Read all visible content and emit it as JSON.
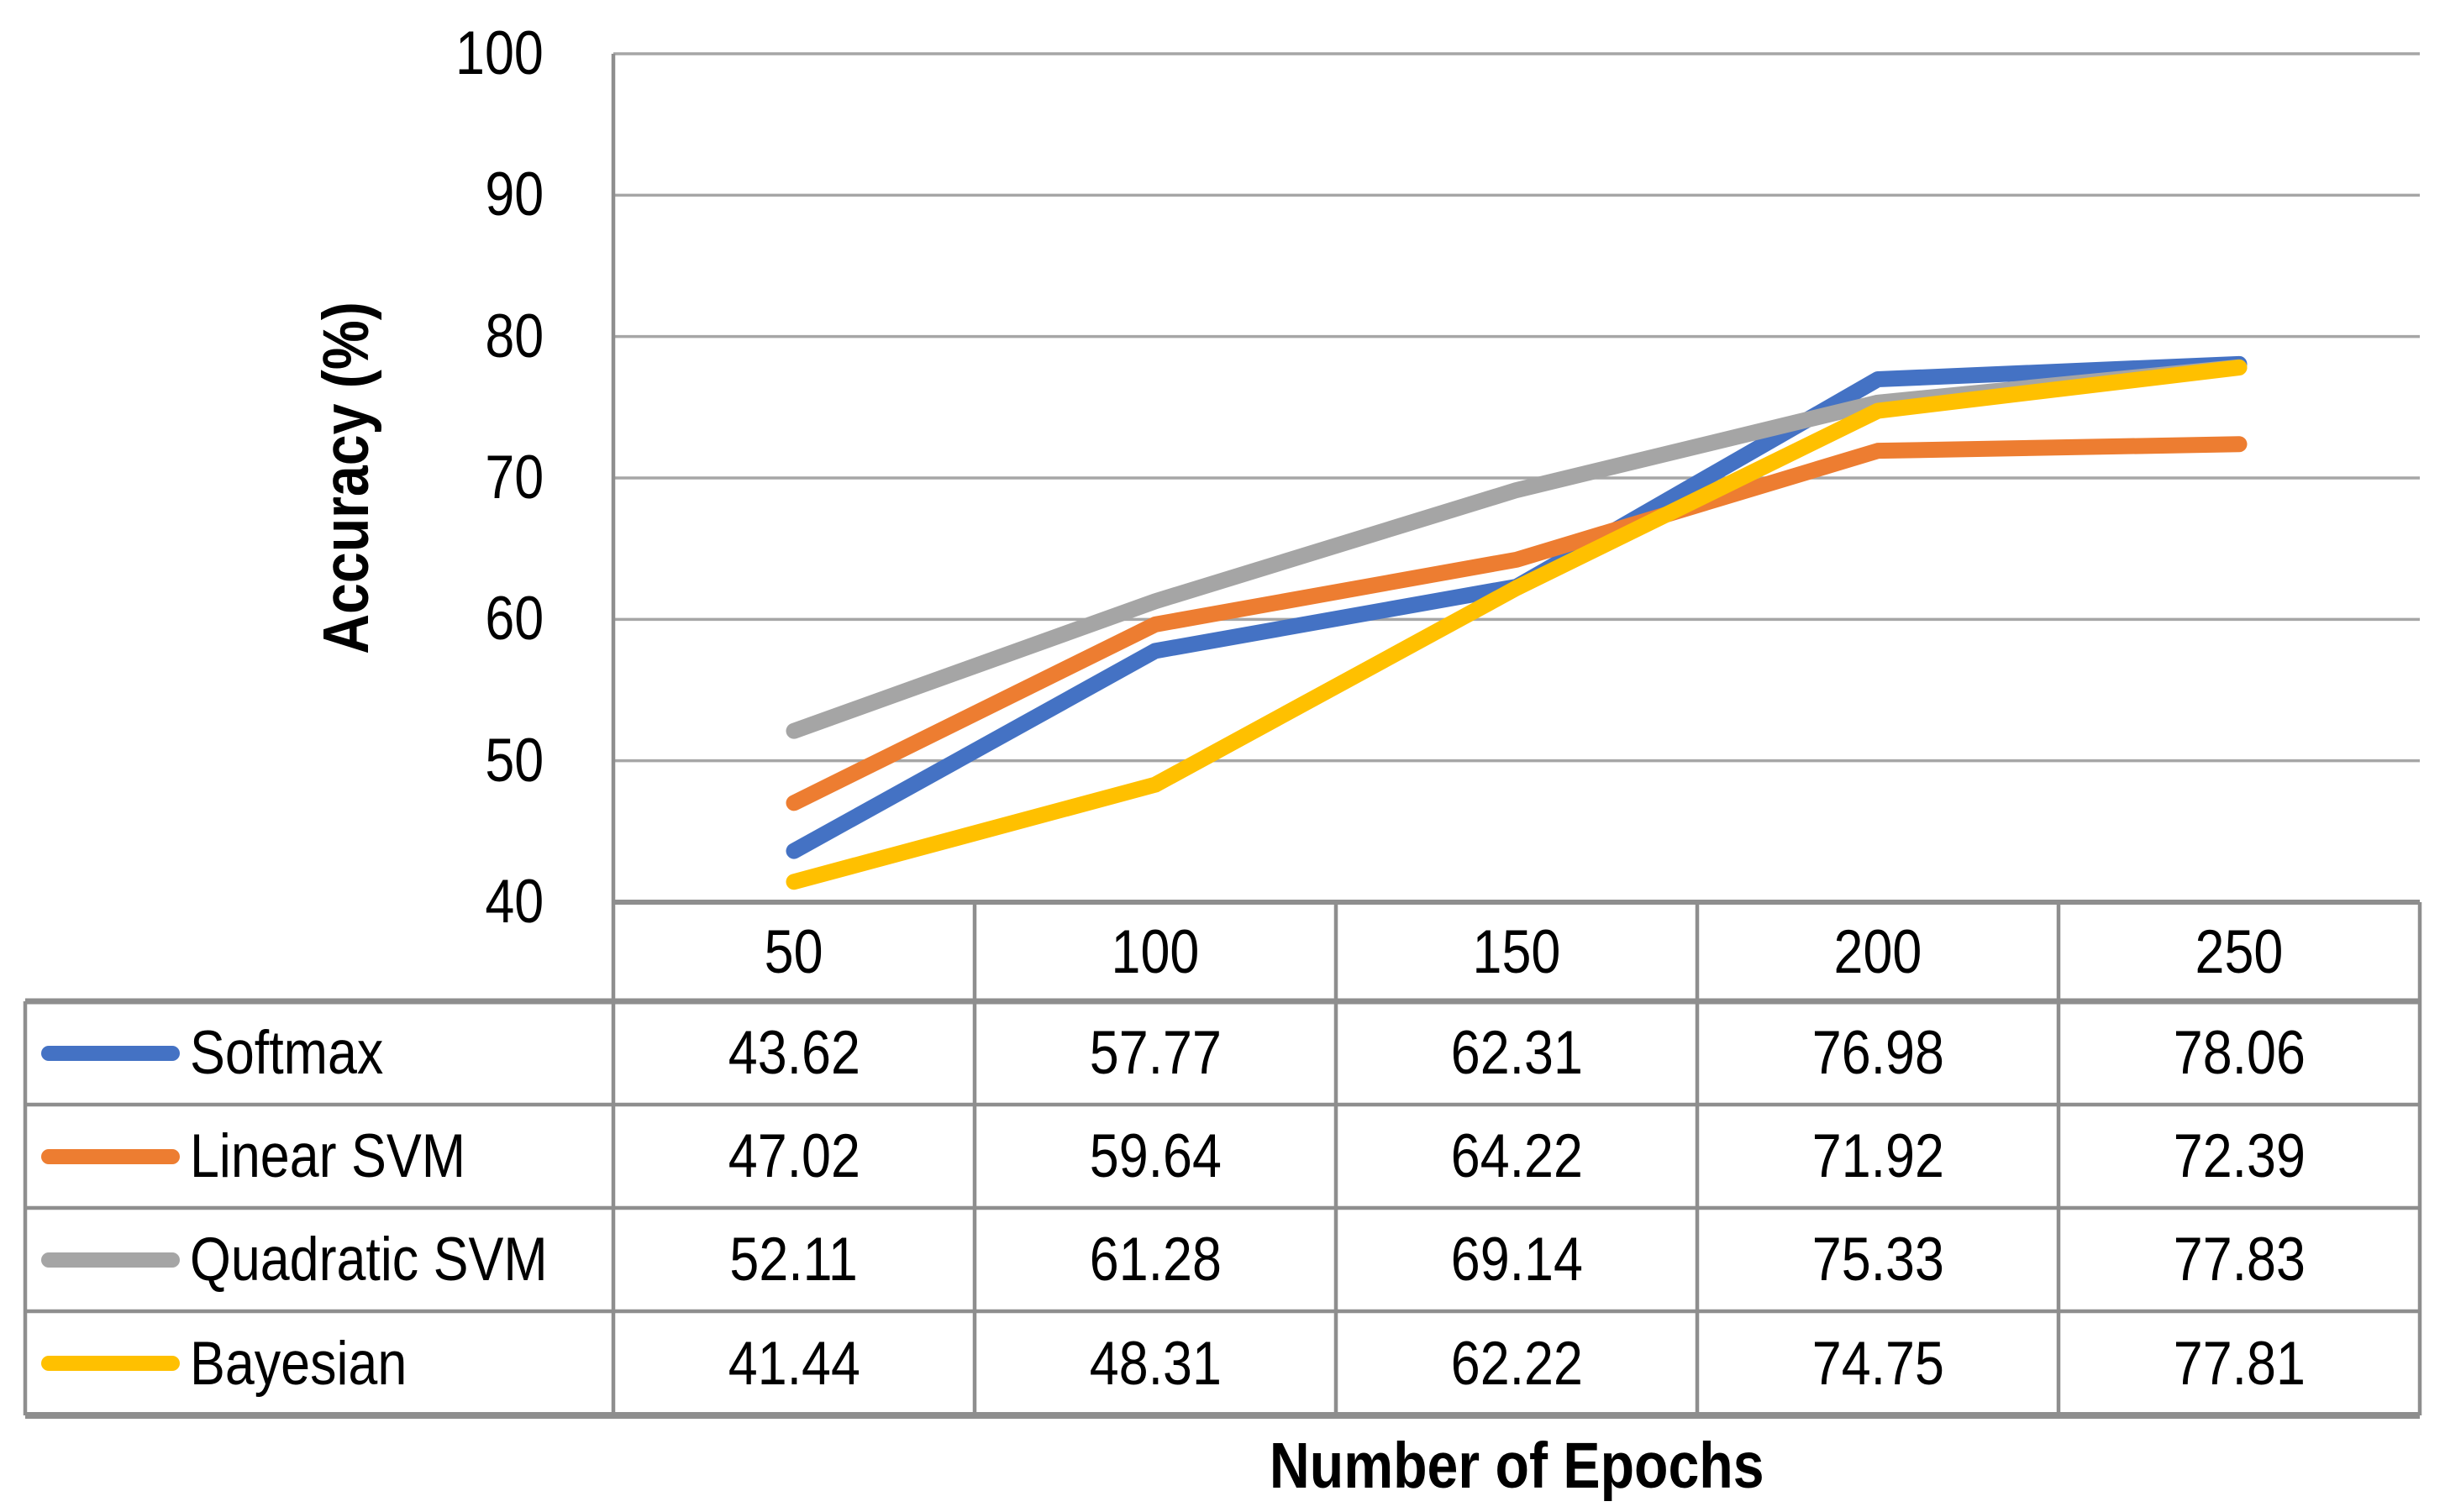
{
  "chart_data": {
    "type": "line",
    "title": "",
    "xlabel": "Number of Epochs",
    "ylabel": "Accuracy (%)",
    "ylim": [
      40,
      100
    ],
    "y_ticks": [
      100,
      90,
      80,
      70,
      60,
      50,
      40
    ],
    "grid": "horizontal-only",
    "legend_position": "table-left-column",
    "categories": [
      50,
      100,
      150,
      200,
      250
    ],
    "series": [
      {
        "name": "Softmax",
        "color": "#4472C4",
        "values": [
          43.62,
          57.77,
          62.31,
          76.98,
          78.06
        ]
      },
      {
        "name": "Linear SVM",
        "color": "#ED7D31",
        "values": [
          47.02,
          59.64,
          64.22,
          71.92,
          72.39
        ]
      },
      {
        "name": "Quadratic SVM",
        "color": "#A5A5A5",
        "values": [
          52.11,
          61.28,
          69.14,
          75.33,
          77.83
        ]
      },
      {
        "name": "Bayesian",
        "color": "#FFC000",
        "values": [
          41.44,
          48.31,
          62.22,
          74.75,
          77.81
        ]
      }
    ],
    "value_decimals": 2
  },
  "style": {
    "background": "#FFFFFF",
    "grid_color": "#A6A6A6",
    "axis_color": "#8E8E8E",
    "text_color": "#000000"
  }
}
